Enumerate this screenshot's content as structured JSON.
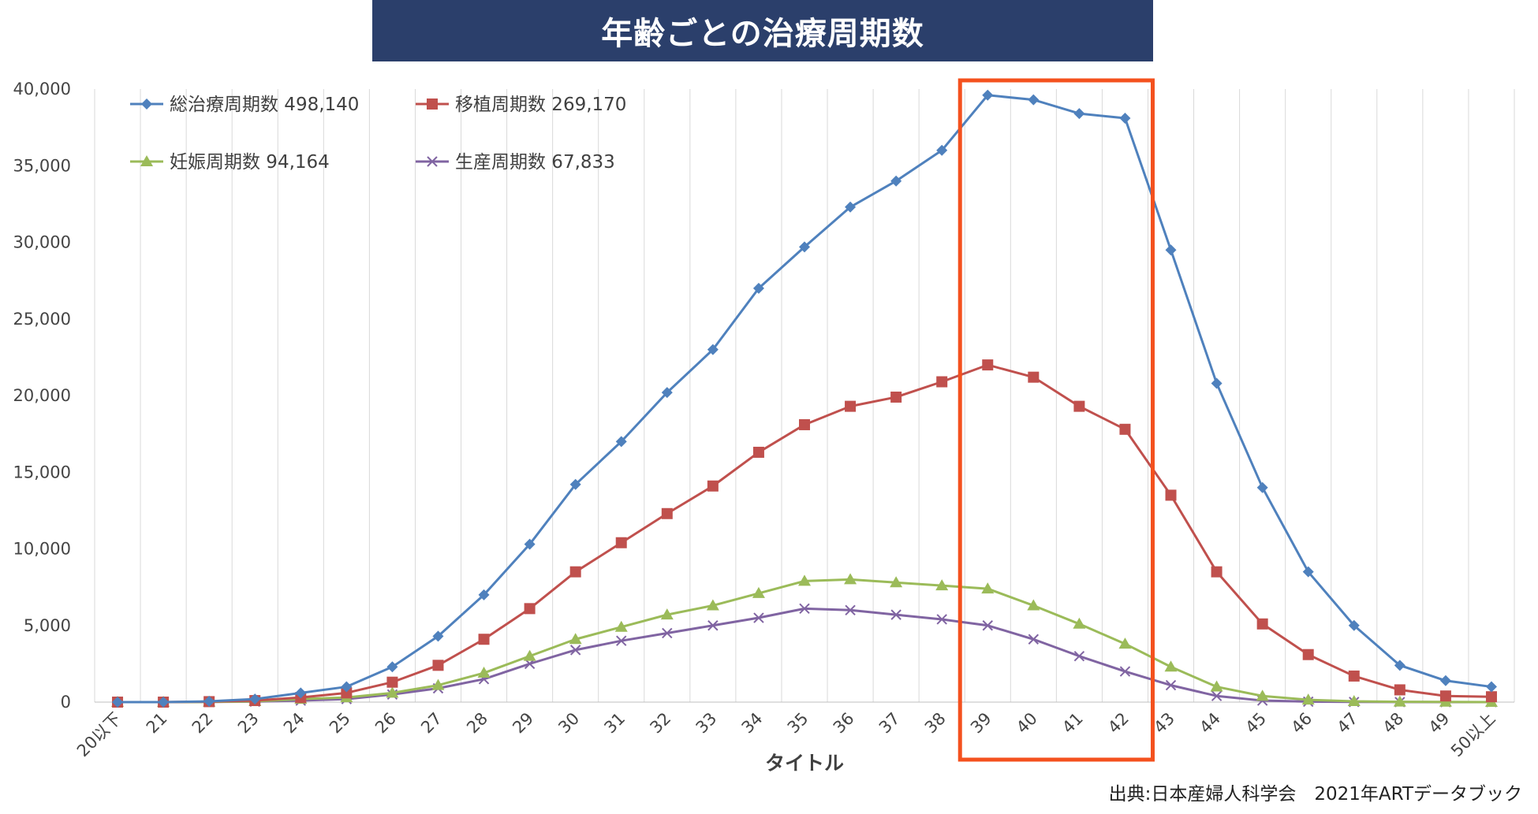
{
  "title": "年齢ごとの治療周期数",
  "source": "出典:日本産婦人科学会　2021年ARTデータブック",
  "chart_data": {
    "type": "line",
    "xlabel": "タイトル",
    "ylabel": "",
    "ylim": [
      0,
      40000
    ],
    "yticks": [
      0,
      5000,
      10000,
      15000,
      20000,
      25000,
      30000,
      35000,
      40000
    ],
    "ytick_labels": [
      "0",
      "5,000",
      "10,000",
      "15,000",
      "20,000",
      "25,000",
      "30,000",
      "35,000",
      "40,000"
    ],
    "grid": "vertical",
    "legend_position": "top-left",
    "categories": [
      "20以下",
      "21",
      "22",
      "23",
      "24",
      "25",
      "26",
      "27",
      "28",
      "29",
      "30",
      "31",
      "32",
      "33",
      "34",
      "35",
      "36",
      "37",
      "38",
      "39",
      "40",
      "41",
      "42",
      "43",
      "44",
      "45",
      "46",
      "47",
      "48",
      "49",
      "50以上"
    ],
    "highlight": {
      "from": "39",
      "to": "42",
      "color": "#f4511e"
    },
    "series": [
      {
        "name": "総治療周期数 498,140",
        "color": "#4f81bd",
        "marker": "diamond",
        "values": [
          0,
          0,
          50,
          200,
          600,
          1000,
          2300,
          4300,
          7000,
          10300,
          14200,
          17000,
          20200,
          23000,
          27000,
          29700,
          32300,
          34000,
          36000,
          39600,
          39300,
          38400,
          38100,
          29500,
          20800,
          14000,
          8500,
          5000,
          2400,
          1400,
          1000
        ]
      },
      {
        "name": "移植周期数 269,170",
        "color": "#c0504d",
        "marker": "square",
        "values": [
          0,
          0,
          30,
          100,
          300,
          600,
          1300,
          2400,
          4100,
          6100,
          8500,
          10400,
          12300,
          14100,
          16300,
          18100,
          19300,
          19900,
          20900,
          22000,
          21200,
          19300,
          17800,
          13500,
          8500,
          5100,
          3100,
          1700,
          800,
          400,
          350
        ]
      },
      {
        "name": "妊娠周期数 94,164",
        "color": "#9bbb59",
        "marker": "triangle",
        "values": [
          0,
          0,
          10,
          50,
          200,
          300,
          600,
          1100,
          1900,
          3000,
          4100,
          4900,
          5700,
          6300,
          7100,
          7900,
          8000,
          7800,
          7600,
          7400,
          6300,
          5100,
          3800,
          2300,
          1000,
          400,
          150,
          50,
          20,
          10,
          0
        ]
      },
      {
        "name": "生産周期数 67,833",
        "color": "#8064a2",
        "marker": "x",
        "values": [
          0,
          0,
          10,
          30,
          100,
          200,
          500,
          900,
          1500,
          2500,
          3400,
          4000,
          4500,
          5000,
          5500,
          6100,
          6000,
          5700,
          5400,
          5000,
          4100,
          3000,
          2000,
          1100,
          400,
          100,
          30,
          10,
          5,
          0,
          0
        ]
      }
    ]
  }
}
